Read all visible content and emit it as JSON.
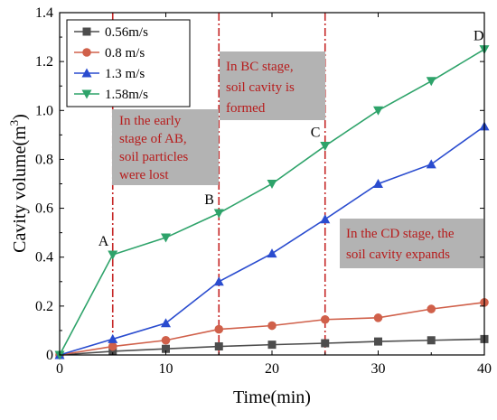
{
  "chart_data": {
    "type": "line",
    "xlabel": "Time(min)",
    "ylabel": "Cavity volume(m",
    "ylabel_sup": "3",
    "ylabel_close": ")",
    "xlim": [
      0,
      40
    ],
    "ylim": [
      0,
      1.4
    ],
    "x_ticks": [
      0,
      10,
      20,
      30,
      40
    ],
    "y_ticks": [
      0,
      0.2,
      0.4,
      0.6,
      0.8,
      1.0,
      1.2,
      1.4
    ],
    "x_tick_labels": [
      "0",
      "10",
      "20",
      "30",
      "40"
    ],
    "y_tick_labels": [
      "0",
      "0.2",
      "0.4",
      "0.6",
      "0.8",
      "1.0",
      "1.2",
      "1.4"
    ],
    "grid": false,
    "legend_position": "top-left",
    "x": [
      0,
      5,
      10,
      15,
      20,
      25,
      30,
      35,
      40
    ],
    "series": [
      {
        "name": "0.56m/s",
        "color": "#4d4d4d",
        "marker": "square",
        "values": [
          0,
          0.015,
          0.025,
          0.035,
          0.042,
          0.048,
          0.055,
          0.06,
          0.065
        ]
      },
      {
        "name": "0.8 m/s",
        "color": "#d0604a",
        "marker": "circle",
        "values": [
          0,
          0.035,
          0.06,
          0.105,
          0.12,
          0.145,
          0.152,
          0.188,
          0.215
        ]
      },
      {
        "name": "1.3 m/s",
        "color": "#2a4ccf",
        "marker": "triangle-up",
        "values": [
          0,
          0.065,
          0.13,
          0.3,
          0.415,
          0.555,
          0.7,
          0.78,
          0.935
        ]
      },
      {
        "name": "1.58m/s",
        "color": "#2ea36a",
        "marker": "triangle-down",
        "values": [
          0,
          0.41,
          0.48,
          0.58,
          0.7,
          0.855,
          1.0,
          1.12,
          1.25
        ]
      }
    ],
    "stage_lines_x": [
      5,
      15,
      25
    ],
    "stage_line_color": "#c62828",
    "point_labels": [
      {
        "text": "A",
        "x": 5,
        "y": 0.41
      },
      {
        "text": "B",
        "x": 15,
        "y": 0.58
      },
      {
        "text": "C",
        "x": 25,
        "y": 0.855
      },
      {
        "text": "D",
        "x": 40,
        "y": 1.25
      }
    ],
    "annotations": [
      {
        "lines": [
          "In the early",
          "stage of AB,",
          "soil particles",
          "were lost"
        ]
      },
      {
        "lines": [
          "In BC stage,",
          "soil cavity is",
          "formed"
        ]
      },
      {
        "lines": [
          "In the CD stage, the",
          "soil cavity expands"
        ]
      }
    ],
    "annotation_bg": "#b3b3b3",
    "annotation_text_color": "#b71c1c"
  }
}
